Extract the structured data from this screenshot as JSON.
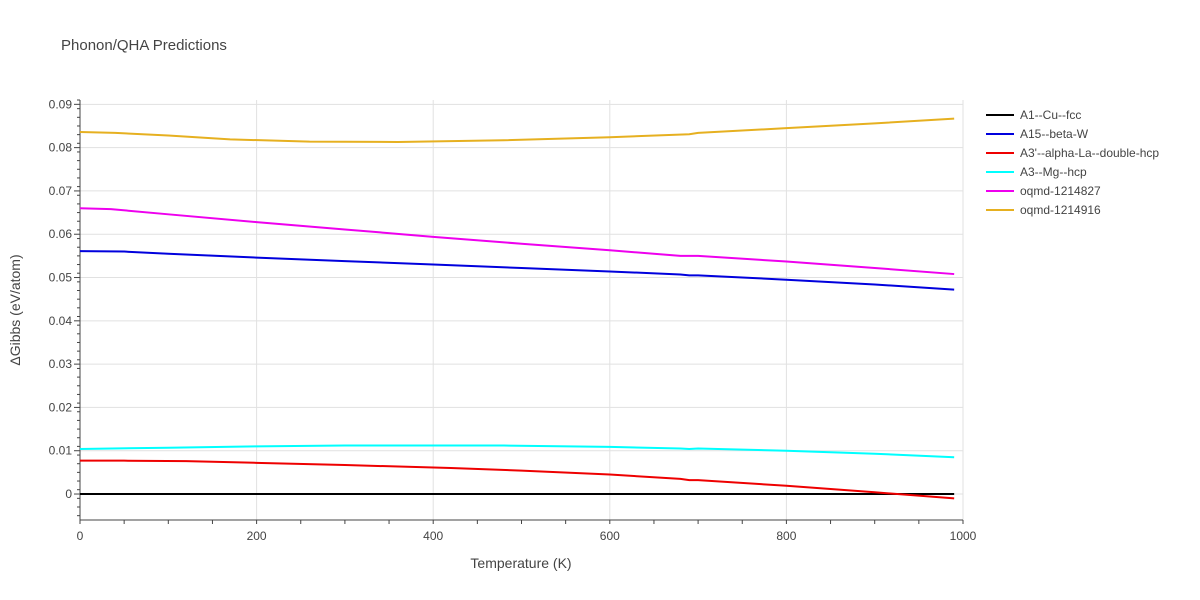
{
  "chart_data": {
    "type": "line",
    "title": "Phonon/QHA Predictions",
    "xlabel": "Temperature (K)",
    "ylabel": "ΔGibbs (eV/atom)",
    "xlim": [
      0,
      1000
    ],
    "ylim": [
      -0.006,
      0.091
    ],
    "x_ticks": [
      0,
      200,
      400,
      600,
      800,
      1000
    ],
    "x_tick_labels": [
      "0",
      "200",
      "400",
      "600",
      "800",
      "1000"
    ],
    "y_ticks": [
      0,
      0.01,
      0.02,
      0.03,
      0.04,
      0.05,
      0.06,
      0.07,
      0.08,
      0.09
    ],
    "y_tick_labels": [
      "0",
      "0.01",
      "0.02",
      "0.03",
      "0.04",
      "0.05",
      "0.06",
      "0.07",
      "0.08",
      "0.09"
    ],
    "grid": true,
    "legend_position": "right",
    "series": [
      {
        "name": "A1--Cu--fcc",
        "color": "#000000",
        "x": [
          0,
          990
        ],
        "y": [
          0,
          0
        ]
      },
      {
        "name": "A15--beta-W",
        "color": "#0000dd",
        "x": [
          0,
          50,
          100,
          200,
          300,
          400,
          500,
          600,
          680,
          690,
          700,
          800,
          900,
          990
        ],
        "y": [
          0.0561,
          0.056,
          0.0555,
          0.0546,
          0.0538,
          0.053,
          0.0522,
          0.0514,
          0.0507,
          0.0505,
          0.0505,
          0.0495,
          0.0484,
          0.0472
        ]
      },
      {
        "name": "A3'--alpha-La--double-hcp",
        "color": "#ee0000",
        "x": [
          0,
          50,
          120,
          200,
          300,
          420,
          500,
          600,
          680,
          690,
          700,
          800,
          900,
          990
        ],
        "y": [
          0.0077,
          0.0077,
          0.0076,
          0.0072,
          0.0067,
          0.006,
          0.0054,
          0.0045,
          0.0035,
          0.0032,
          0.0032,
          0.0019,
          0.0004,
          -0.001
        ]
      },
      {
        "name": "A3--Mg--hcp",
        "color": "#00ffff",
        "x": [
          0,
          100,
          200,
          300,
          400,
          480,
          600,
          680,
          690,
          700,
          800,
          900,
          990
        ],
        "y": [
          0.0104,
          0.0107,
          0.011,
          0.0112,
          0.0112,
          0.0112,
          0.0109,
          0.0105,
          0.0104,
          0.0105,
          0.01,
          0.0093,
          0.0085
        ]
      },
      {
        "name": "oqmd-1214827",
        "color": "#ee00ee",
        "x": [
          0,
          35,
          100,
          200,
          300,
          400,
          500,
          600,
          680,
          700,
          800,
          900,
          990
        ],
        "y": [
          0.066,
          0.0658,
          0.0646,
          0.0628,
          0.0611,
          0.0594,
          0.0578,
          0.0563,
          0.055,
          0.055,
          0.0537,
          0.0522,
          0.0508
        ]
      },
      {
        "name": "oqmd-1214916",
        "color": "#e6b020",
        "x": [
          0,
          40,
          100,
          170,
          260,
          360,
          480,
          600,
          690,
          700,
          800,
          900,
          990
        ],
        "y": [
          0.0836,
          0.0834,
          0.0828,
          0.0819,
          0.0814,
          0.0813,
          0.0817,
          0.0824,
          0.0831,
          0.0834,
          0.0845,
          0.0856,
          0.0867
        ]
      }
    ]
  }
}
